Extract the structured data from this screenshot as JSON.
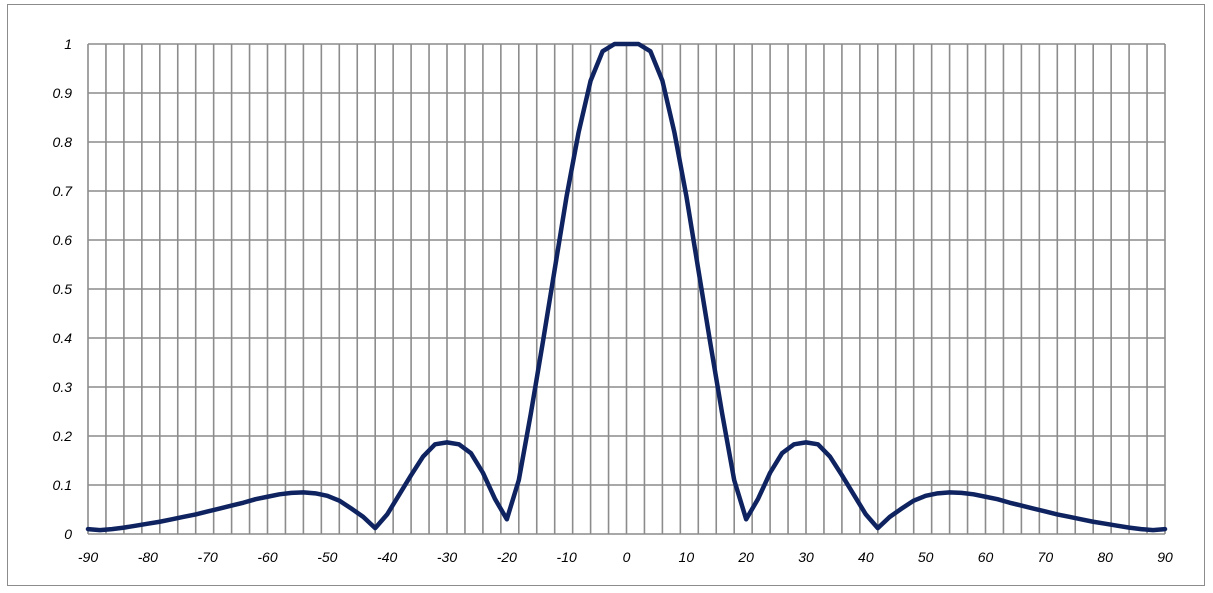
{
  "chart_data": {
    "type": "line",
    "title": "",
    "xlabel": "",
    "ylabel": "",
    "xlim": [
      -90,
      90
    ],
    "ylim": [
      0,
      1
    ],
    "x_ticks": [
      -90,
      -80,
      -70,
      -60,
      -50,
      -40,
      -30,
      -20,
      -10,
      0,
      10,
      20,
      30,
      40,
      50,
      60,
      70,
      80,
      90
    ],
    "x_tick_labels": [
      "-90",
      "-80",
      "-70",
      "-60",
      "-50",
      "-40",
      "-30",
      "-20",
      "-10",
      "0",
      "10",
      "20",
      "30",
      "40",
      "50",
      "60",
      "70",
      "80",
      "90"
    ],
    "y_ticks": [
      0,
      0.1,
      0.2,
      0.3,
      0.4,
      0.5,
      0.6,
      0.7,
      0.8,
      0.9,
      1
    ],
    "y_tick_labels": [
      "0",
      "0.1",
      "0.2",
      "0.3",
      "0.4",
      "0.5",
      "0.6",
      "0.7",
      "0.8",
      "0.9",
      "1"
    ],
    "grid": true,
    "x_gridline_step": 3,
    "legend": "none",
    "series": [
      {
        "color": "#0e2360",
        "x": [
          -90,
          -88,
          -86,
          -84,
          -82,
          -80,
          -78,
          -76,
          -74,
          -72,
          -70,
          -68,
          -66,
          -64,
          -62,
          -60,
          -58,
          -56,
          -54,
          -52,
          -50,
          -48,
          -46,
          -44,
          -42,
          -40,
          -38,
          -36,
          -34,
          -32,
          -30,
          -28,
          -26,
          -24,
          -22,
          -20,
          -18,
          -16,
          -14,
          -12,
          -10,
          -8,
          -6,
          -4,
          -2,
          0,
          2,
          4,
          6,
          8,
          10,
          12,
          14,
          16,
          18,
          20,
          22,
          24,
          26,
          28,
          30,
          32,
          34,
          36,
          38,
          40,
          42,
          44,
          46,
          48,
          50,
          52,
          54,
          56,
          58,
          60,
          62,
          64,
          66,
          68,
          70,
          72,
          74,
          76,
          78,
          80,
          82,
          84,
          86,
          88,
          90
        ],
        "y": [
          0.01,
          0.008,
          0.01,
          0.013,
          0.017,
          0.021,
          0.025,
          0.03,
          0.035,
          0.04,
          0.046,
          0.052,
          0.058,
          0.064,
          0.071,
          0.076,
          0.081,
          0.084,
          0.085,
          0.083,
          0.078,
          0.068,
          0.052,
          0.035,
          0.012,
          0.04,
          0.08,
          0.12,
          0.158,
          0.183,
          0.187,
          0.183,
          0.165,
          0.125,
          0.072,
          0.03,
          0.11,
          0.245,
          0.39,
          0.54,
          0.69,
          0.82,
          0.925,
          0.985,
          1.0,
          1.0,
          1.0,
          0.985,
          0.925,
          0.82,
          0.69,
          0.54,
          0.39,
          0.245,
          0.11,
          0.03,
          0.072,
          0.125,
          0.165,
          0.183,
          0.187,
          0.183,
          0.158,
          0.12,
          0.08,
          0.04,
          0.012,
          0.035,
          0.052,
          0.068,
          0.078,
          0.083,
          0.085,
          0.084,
          0.081,
          0.076,
          0.071,
          0.064,
          0.058,
          0.052,
          0.046,
          0.04,
          0.035,
          0.03,
          0.025,
          0.021,
          0.017,
          0.013,
          0.01,
          0.008,
          0.01
        ]
      }
    ]
  },
  "colors": {
    "grid": "#8c8c8c",
    "frame": "#8c8c8c",
    "line": "#0e2360"
  }
}
